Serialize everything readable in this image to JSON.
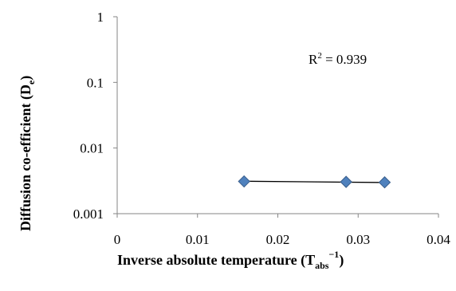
{
  "chart_data": {
    "type": "scatter",
    "y_scale": "log",
    "x_scale": "linear",
    "grid": false,
    "legend": "none",
    "xlim": [
      0,
      0.04
    ],
    "ylim": [
      0.001,
      1
    ],
    "x_ticks": [
      "0",
      "0.01",
      "0.02",
      "0.03",
      "0.04"
    ],
    "y_ticks": [
      "1",
      "0.1",
      "0.01",
      "0.001"
    ],
    "xlabel_main": "Inverse absolute temperature (T",
    "xlabel_sub": "abs",
    "xlabel_sup": "−1",
    "xlabel_end": ")",
    "ylabel_main": "Diffusion co-efficient (D",
    "ylabel_sub": "e",
    "ylabel_end": ")",
    "annotation_base": "R",
    "annotation_sup": "2",
    "annotation_rest": " = 0.939",
    "series": [
      {
        "x": [
          0.0158,
          0.0285,
          0.0333
        ],
        "y": [
          0.0031,
          0.00305,
          0.003
        ]
      }
    ],
    "trendline": {
      "x": [
        0.0158,
        0.0333
      ],
      "y": [
        0.00312,
        0.00298
      ]
    },
    "marker_color": "#4F81BD",
    "marker_edge": "#385D8A",
    "line_color": "#000000"
  }
}
